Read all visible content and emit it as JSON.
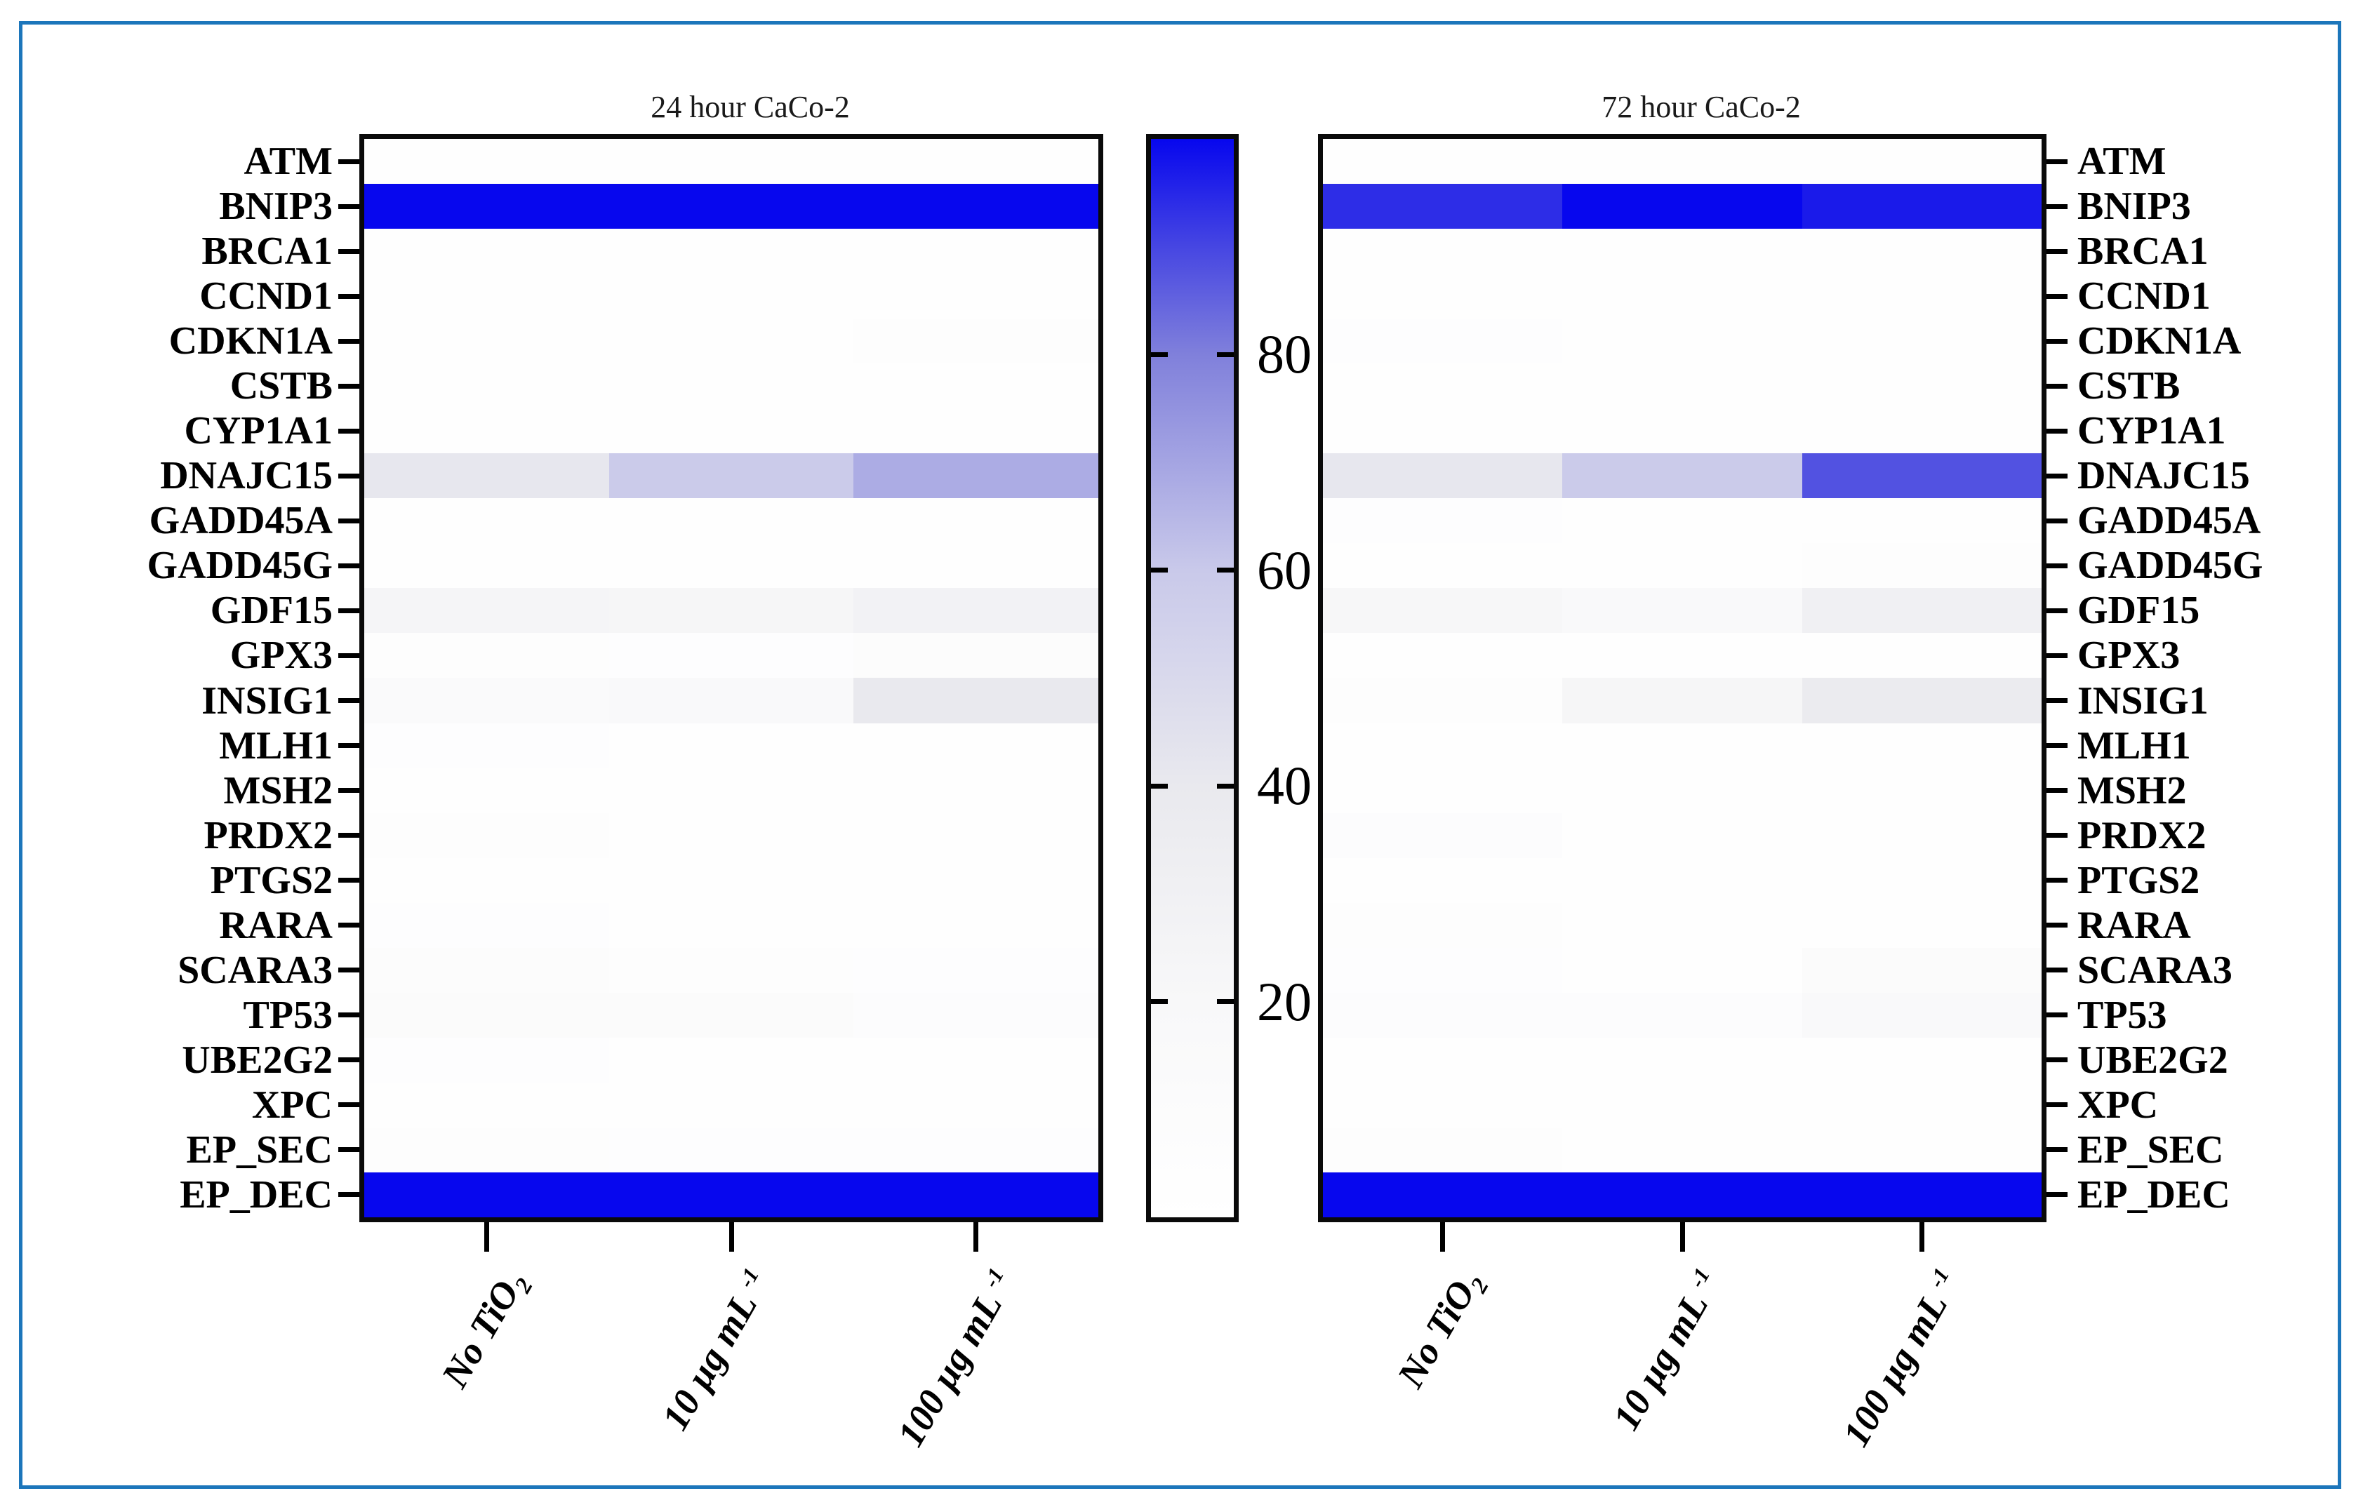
{
  "figure": {
    "frame_color": "#1c76bb",
    "colormap_stops": [
      {
        "v": 0,
        "c": "#ffffff"
      },
      {
        "v": 20,
        "c": "#f8f8f9"
      },
      {
        "v": 40,
        "c": "#e9e9ee"
      },
      {
        "v": 60,
        "c": "#c9c9ea"
      },
      {
        "v": 80,
        "c": "#8080db"
      },
      {
        "v": 90,
        "c": "#4646e2"
      },
      {
        "v": 100,
        "c": "#0707ee"
      }
    ],
    "x_tick_parts": [
      {
        "base": "No TiO",
        "sub": "2",
        "sup": ""
      },
      {
        "base": "10 µg mL",
        "sub": "",
        "sup": "-1"
      },
      {
        "base": "100 µg mL",
        "sub": "",
        "sup": "-1"
      }
    ]
  },
  "chart_data": [
    {
      "type": "heatmap",
      "title": "24 hour CaCo-2",
      "xlabel": "",
      "ylabel": "",
      "x_categories": [
        "No TiO2",
        "10 µg mL-1",
        "100 µg mL-1"
      ],
      "y_categories": [
        "ATM",
        "BNIP3",
        "BRCA1",
        "CCND1",
        "CDKN1A",
        "CSTB",
        "CYP1A1",
        "DNAJC15",
        "GADD45A",
        "GADD45G",
        "GDF15",
        "GPX3",
        "INSIG1",
        "MLH1",
        "MSH2",
        "PRDX2",
        "PTGS2",
        "RARA",
        "SCARA3",
        "TP53",
        "UBE2G2",
        "XPC",
        "EP_SEC",
        "EP_DEC"
      ],
      "values": [
        [
          3,
          2,
          2
        ],
        [
          100,
          100,
          100
        ],
        [
          4,
          3,
          3
        ],
        [
          3,
          2,
          3
        ],
        [
          3,
          3,
          7
        ],
        [
          2,
          2,
          2
        ],
        [
          2,
          2,
          3
        ],
        [
          41,
          59,
          68
        ],
        [
          4,
          3,
          3
        ],
        [
          3,
          2,
          2
        ],
        [
          24,
          23,
          28
        ],
        [
          6,
          5,
          9
        ],
        [
          15,
          18,
          40
        ],
        [
          5,
          4,
          4
        ],
        [
          4,
          3,
          3
        ],
        [
          6,
          4,
          4
        ],
        [
          3,
          3,
          3
        ],
        [
          5,
          4,
          3
        ],
        [
          9,
          6,
          5
        ],
        [
          12,
          12,
          8
        ],
        [
          5,
          4,
          4
        ],
        [
          3,
          3,
          3
        ],
        [
          6,
          5,
          5
        ],
        [
          100,
          100,
          100
        ]
      ],
      "colorbar": {
        "min": 0,
        "max": 100,
        "ticks": [
          20,
          40,
          60,
          80
        ],
        "low_color": "white",
        "high_color": "blue"
      },
      "legend": "shared vertical colorbar between panels",
      "grid": false
    },
    {
      "type": "heatmap",
      "title": "72 hour CaCo-2",
      "xlabel": "",
      "ylabel": "",
      "x_categories": [
        "No TiO2",
        "10 µg mL-1",
        "100 µg mL-1"
      ],
      "y_categories": [
        "ATM",
        "BNIP3",
        "BRCA1",
        "CCND1",
        "CDKN1A",
        "CSTB",
        "CYP1A1",
        "DNAJC15",
        "GADD45A",
        "GADD45G",
        "GDF15",
        "GPX3",
        "INSIG1",
        "MLH1",
        "MSH2",
        "PRDX2",
        "PTGS2",
        "RARA",
        "SCARA3",
        "TP53",
        "UBE2G2",
        "XPC",
        "EP_SEC",
        "EP_DEC"
      ],
      "values": [
        [
          2,
          2,
          2
        ],
        [
          94,
          100,
          97
        ],
        [
          3,
          2,
          2
        ],
        [
          3,
          2,
          2
        ],
        [
          5,
          3,
          3
        ],
        [
          2,
          2,
          2
        ],
        [
          2,
          2,
          2
        ],
        [
          41,
          59,
          88
        ],
        [
          5,
          3,
          3
        ],
        [
          4,
          3,
          6
        ],
        [
          21,
          16,
          31
        ],
        [
          4,
          3,
          3
        ],
        [
          6,
          23,
          38
        ],
        [
          3,
          3,
          3
        ],
        [
          4,
          3,
          3
        ],
        [
          8,
          4,
          4
        ],
        [
          3,
          3,
          3
        ],
        [
          6,
          3,
          3
        ],
        [
          5,
          4,
          12
        ],
        [
          8,
          8,
          16
        ],
        [
          4,
          3,
          3
        ],
        [
          3,
          3,
          3
        ],
        [
          6,
          4,
          4
        ],
        [
          100,
          100,
          100
        ]
      ],
      "colorbar": {
        "min": 0,
        "max": 100,
        "ticks": [
          20,
          40,
          60,
          80
        ],
        "low_color": "white",
        "high_color": "blue"
      },
      "legend": "shared vertical colorbar between panels",
      "grid": false
    }
  ]
}
